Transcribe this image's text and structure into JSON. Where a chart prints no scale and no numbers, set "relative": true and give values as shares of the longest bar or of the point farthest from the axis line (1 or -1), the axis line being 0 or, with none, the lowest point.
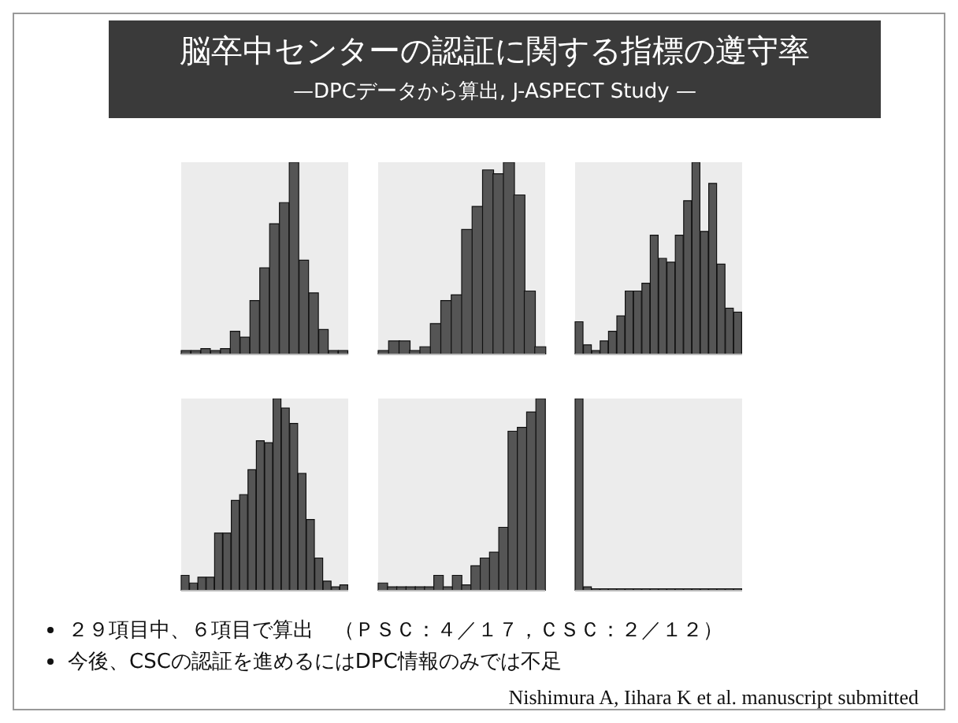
{
  "chart_data": [
    {
      "type": "bar",
      "relative": true,
      "title": "脳卒中センターの認証に関する指標の遵守率",
      "subtitle": "—DPCデータから算出, J-ASPECT Study —",
      "annotations": [
        "２９項目中、６項目で算出　（ＰＳＣ：４／１７，ＣＳＣ：２／１２）",
        "今後、CSCの認証を進めるにはDPC情報のみでは不足",
        "Nishimura A, Iihara K et al. manuscript submitted"
      ],
      "categories": [
        null,
        null,
        null,
        null,
        null,
        null,
        null,
        null,
        null,
        null,
        null,
        null,
        null,
        null,
        null,
        null,
        null
      ],
      "color": "#555555",
      "values": [
        0.02,
        0.02,
        0.03,
        0.02,
        0.03,
        0.12,
        0.09,
        0.28,
        0.45,
        0.68,
        0.79,
        1,
        0.49,
        0.32,
        0.13,
        0.02,
        0.02
      ]
    },
    {
      "type": "bar",
      "relative": true,
      "categories": [
        null,
        null,
        null,
        null,
        null,
        null,
        null,
        null,
        null,
        null,
        null,
        null,
        null,
        null,
        null,
        null
      ],
      "color": "#555555",
      "values": [
        0.02,
        0.07,
        0.07,
        0.02,
        0.04,
        0.16,
        0.28,
        0.31,
        0.65,
        0.77,
        0.96,
        0.94,
        1,
        0.83,
        0.33,
        0.04
      ]
    },
    {
      "type": "bar",
      "relative": true,
      "categories": [
        null,
        null,
        null,
        null,
        null,
        null,
        null,
        null,
        null,
        null,
        null,
        null,
        null,
        null,
        null,
        null,
        null,
        null,
        null,
        null
      ],
      "color": "#555555",
      "values": [
        0.17,
        0.05,
        0.02,
        0.07,
        0.12,
        0.2,
        0.33,
        0.33,
        0.37,
        0.62,
        0.5,
        0.48,
        0.62,
        0.8,
        1,
        0.64,
        0.89,
        0.47,
        0.24,
        0.22
      ]
    },
    {
      "type": "bar",
      "relative": true,
      "categories": [
        null,
        null,
        null,
        null,
        null,
        null,
        null,
        null,
        null,
        null,
        null,
        null,
        null,
        null,
        null,
        null,
        null,
        null,
        null,
        null
      ],
      "color": "#555555",
      "values": [
        0.08,
        0.04,
        0.07,
        0.07,
        0.3,
        0.3,
        0.47,
        0.5,
        0.63,
        0.78,
        0.77,
        1,
        0.95,
        0.87,
        0.61,
        0.37,
        0.17,
        0.05,
        0.02,
        0.03
      ]
    },
    {
      "type": "bar",
      "relative": true,
      "categories": [
        null,
        null,
        null,
        null,
        null,
        null,
        null,
        null,
        null,
        null,
        null,
        null,
        null,
        null,
        null,
        null,
        null,
        null
      ],
      "color": "#555555",
      "values": [
        0.04,
        0.02,
        0.02,
        0.02,
        0.02,
        0.02,
        0.08,
        0.02,
        0.08,
        0.03,
        0.13,
        0.17,
        0.2,
        0.33,
        0.83,
        0.85,
        0.93,
        1
      ]
    },
    {
      "type": "bar",
      "relative": true,
      "categories": [
        null,
        null,
        null,
        null,
        null,
        null,
        null,
        null,
        null,
        null,
        null,
        null,
        null,
        null,
        null,
        null,
        null,
        null,
        null,
        null
      ],
      "color": "#555555",
      "values": [
        1,
        0.02,
        0.01,
        0.01,
        0.01,
        0.01,
        0.01,
        0.01,
        0.01,
        0.01,
        0.01,
        0.01,
        0.01,
        0.01,
        0.01,
        0.01,
        0.01,
        0.01,
        0.01,
        0.01
      ]
    }
  ]
}
